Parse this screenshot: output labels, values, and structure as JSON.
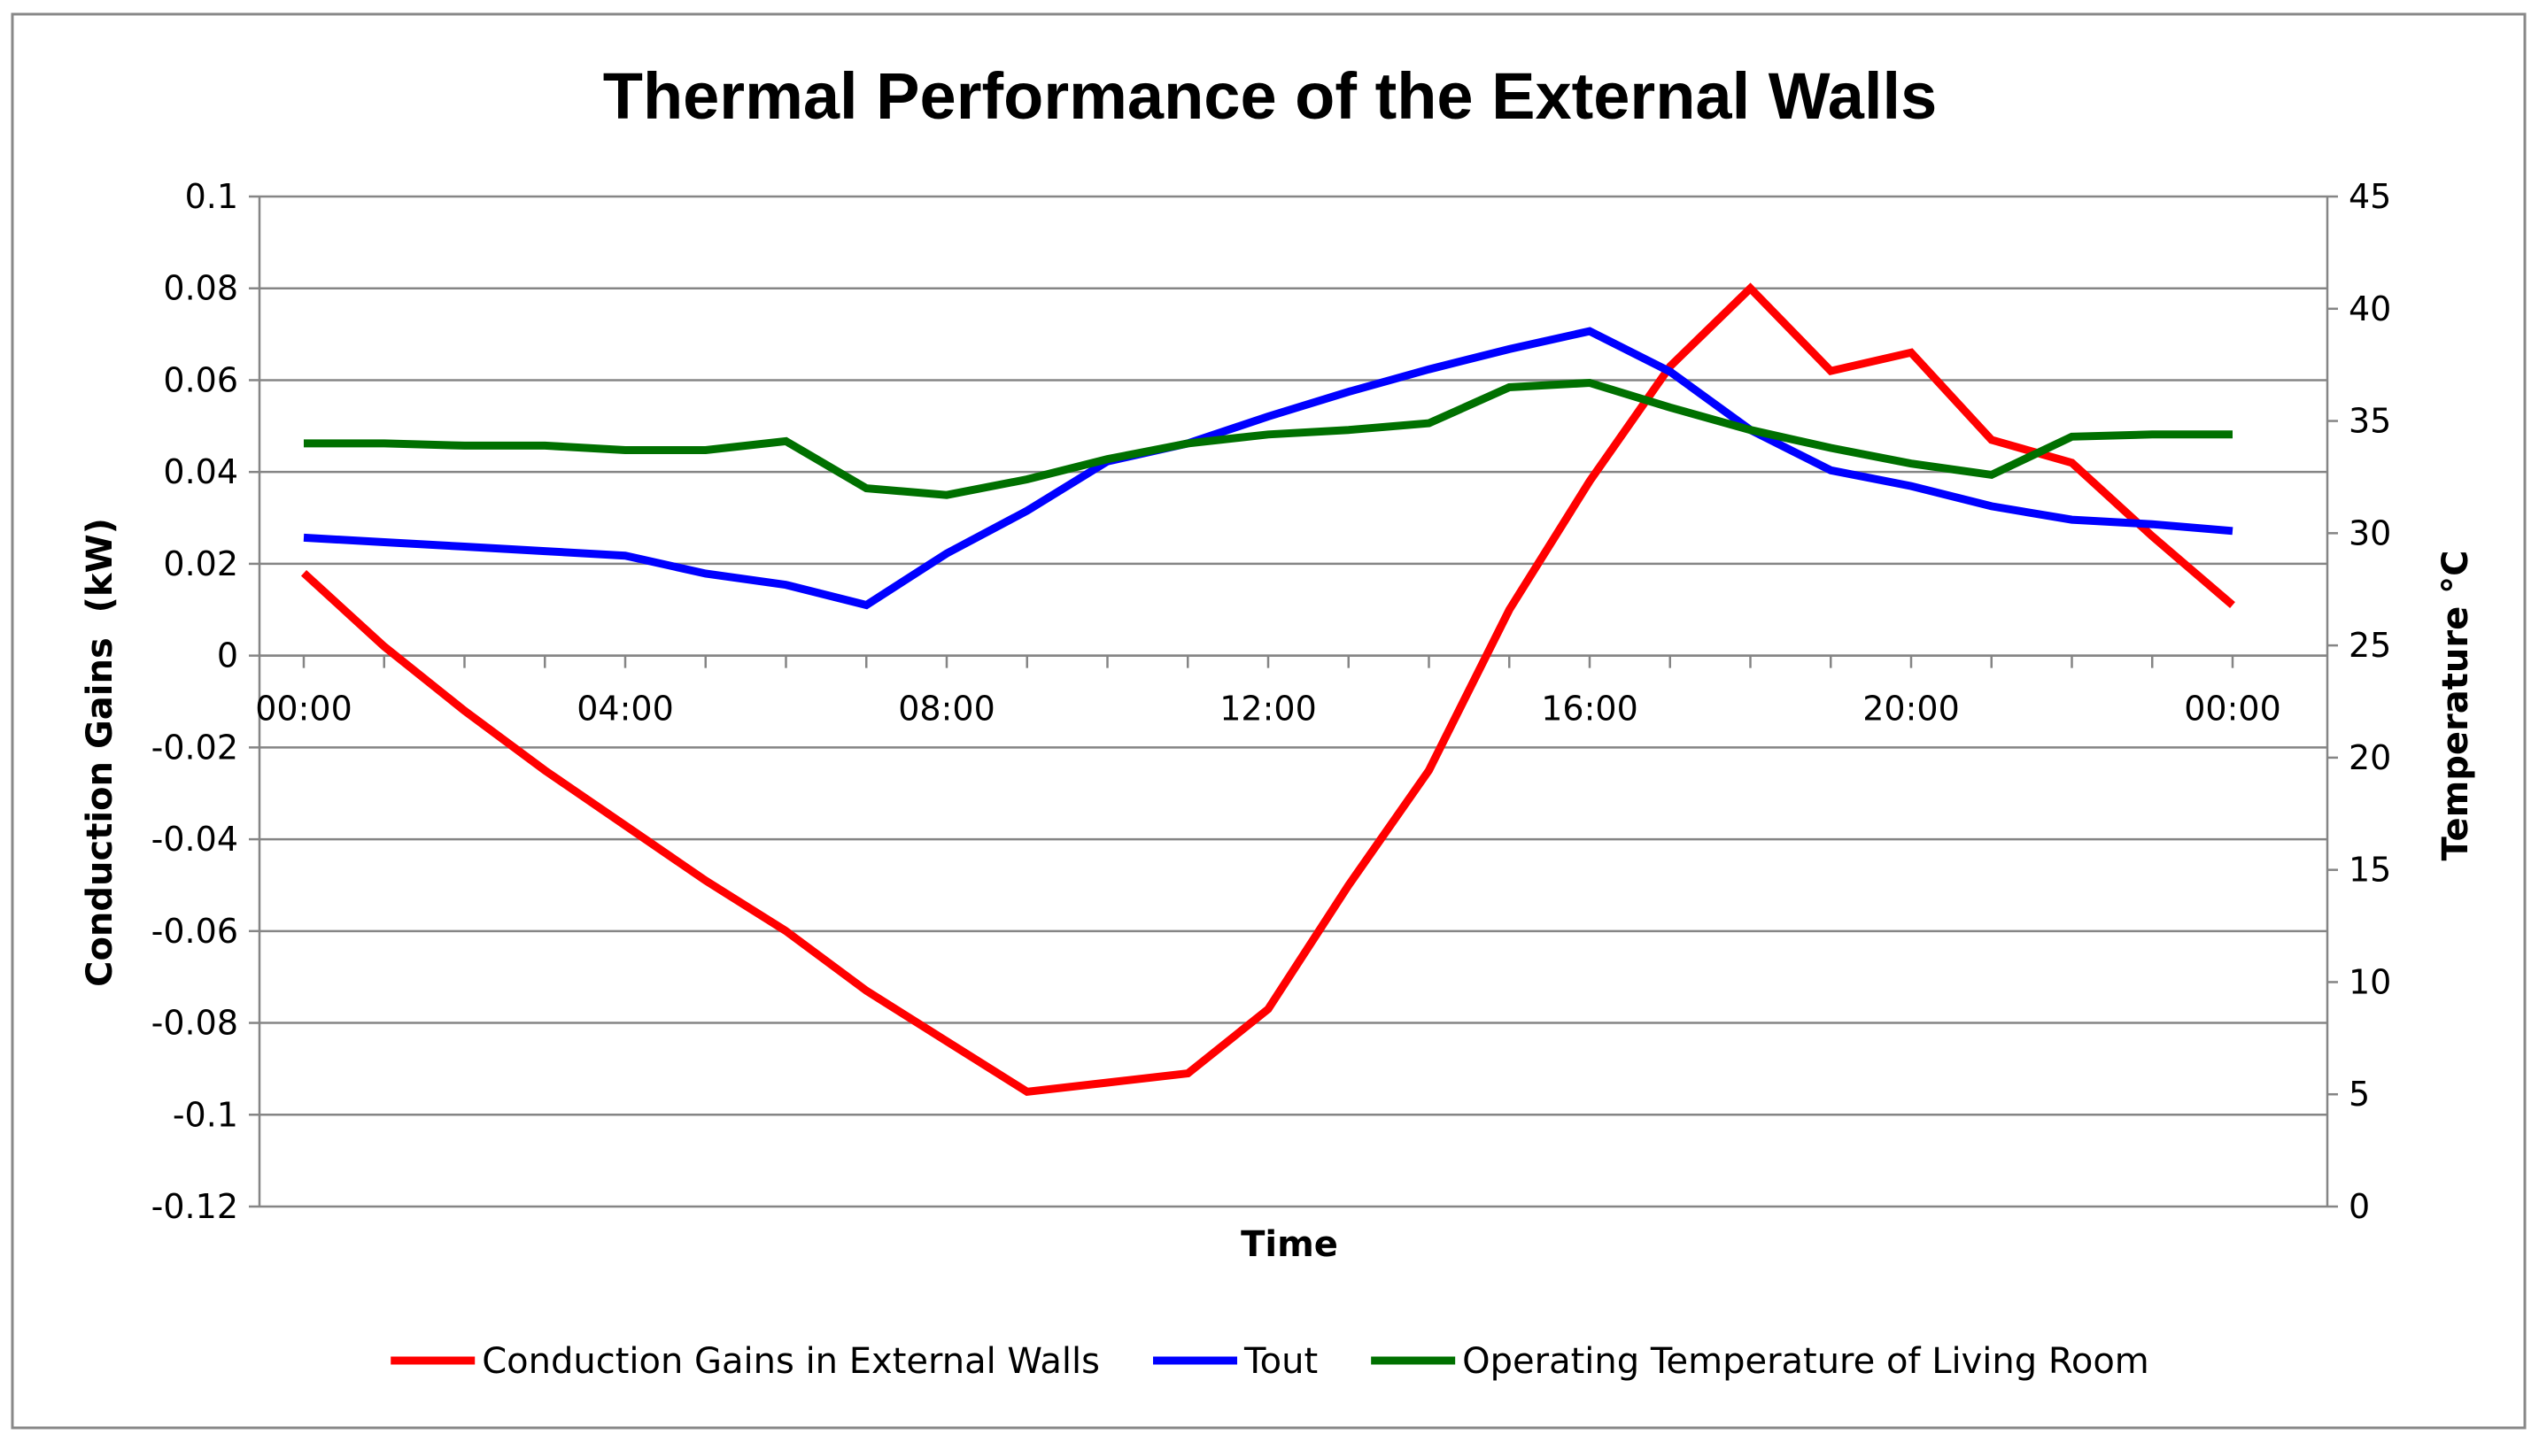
{
  "chart_data": {
    "type": "line",
    "title": "Thermal Performance of the External Walls",
    "xlabel": "Time",
    "ylabel_left": "Conduction Gains  (kW)",
    "ylabel_right": "Temperature °C",
    "ylim_left": [
      -0.12,
      0.1
    ],
    "ylim_right": [
      0,
      45
    ],
    "x_hours": [
      0,
      1,
      2,
      3,
      4,
      5,
      6,
      7,
      8,
      9,
      10,
      11,
      12,
      13,
      14,
      15,
      16,
      17,
      18,
      19,
      20,
      21,
      22,
      23,
      24
    ],
    "x_tick_labels": [
      "00:00",
      "04:00",
      "08:00",
      "12:00",
      "16:00",
      "20:00",
      "00:00"
    ],
    "y_left_ticks": [
      "0.1",
      "0.08",
      "0.06",
      "0.04",
      "0.02",
      "0",
      "-0.02",
      "-0.04",
      "-0.06",
      "-0.08",
      "-0.1",
      "-0.12"
    ],
    "y_right_ticks": [
      "45",
      "40",
      "35",
      "30",
      "25",
      "20",
      "15",
      "10",
      "5",
      "0"
    ],
    "gridlines": true,
    "legend_position": "bottom",
    "series": [
      {
        "name": "Conduction Gains in External Walls",
        "axis": "left",
        "color": "#ff0000",
        "values": [
          0.018,
          0.002,
          -0.012,
          -0.025,
          -0.037,
          -0.049,
          -0.06,
          -0.073,
          -0.084,
          -0.095,
          -0.093,
          -0.091,
          -0.077,
          -0.05,
          -0.025,
          0.01,
          0.038,
          0.063,
          0.08,
          0.062,
          0.066,
          0.047,
          0.042,
          0.026,
          0.011
        ]
      },
      {
        "name": "Tout",
        "axis": "right",
        "color": "#0000ff",
        "values": [
          29.8,
          29.6,
          29.4,
          29.2,
          29.0,
          28.2,
          27.7,
          26.8,
          29.1,
          31.0,
          33.2,
          34.0,
          35.2,
          36.3,
          37.3,
          38.2,
          39.0,
          37.2,
          34.6,
          32.8,
          32.1,
          31.2,
          30.6,
          30.4,
          30.1
        ]
      },
      {
        "name": "Operating Temperature of Living Room",
        "axis": "right",
        "color": "#007000",
        "values": [
          34.0,
          34.0,
          33.9,
          33.9,
          33.7,
          33.7,
          34.1,
          32.0,
          31.7,
          32.4,
          33.3,
          34.0,
          34.4,
          34.6,
          34.9,
          36.5,
          36.7,
          35.6,
          34.6,
          33.8,
          33.1,
          32.6,
          34.3,
          34.4,
          34.4
        ]
      }
    ]
  }
}
